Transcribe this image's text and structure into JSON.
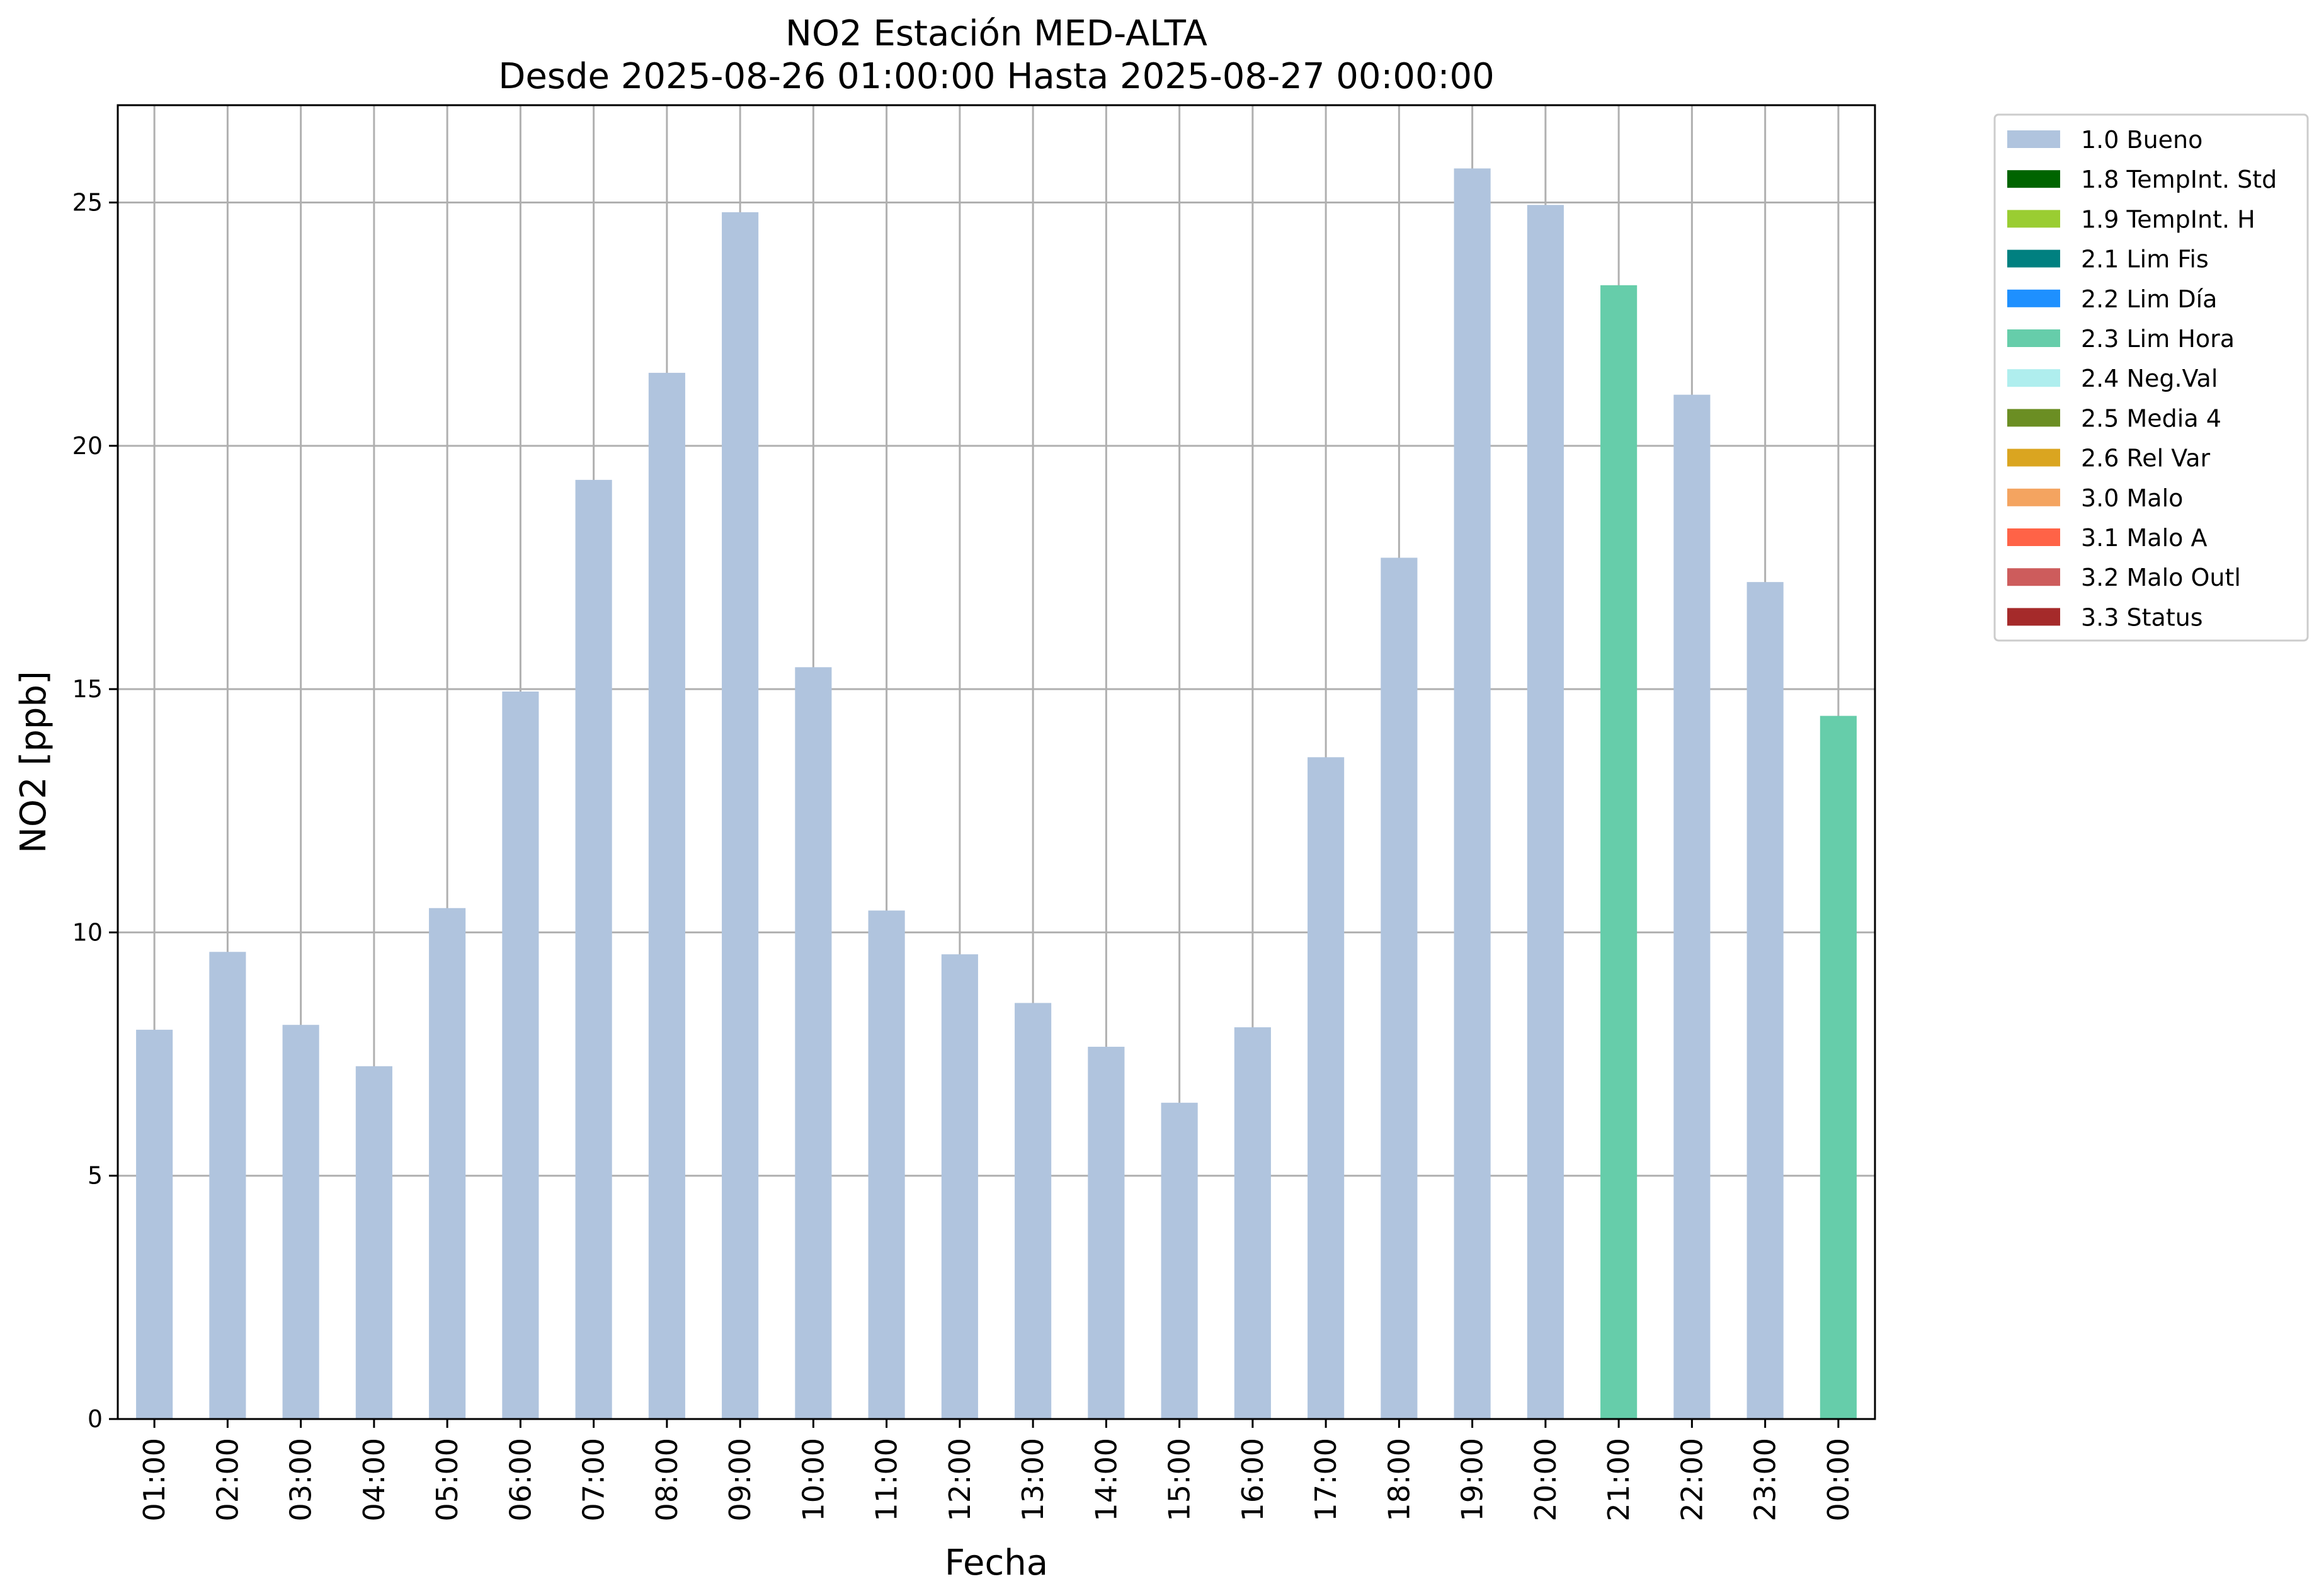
{
  "chart_data": {
    "type": "bar",
    "title": "NO2 Estación MED-ALTA",
    "subtitle": "Desde 2025-08-26 01:00:00 Hasta 2025-08-27 00:00:00",
    "xlabel": "Fecha",
    "ylabel": "NO2 [ppb]",
    "ylim": [
      0,
      27
    ],
    "yticks": [
      0,
      5,
      10,
      15,
      20,
      25
    ],
    "grid": true,
    "legend_position": "outside-top-right",
    "categories": [
      "01:00",
      "02:00",
      "03:00",
      "04:00",
      "05:00",
      "06:00",
      "07:00",
      "08:00",
      "09:00",
      "10:00",
      "11:00",
      "12:00",
      "13:00",
      "14:00",
      "15:00",
      "16:00",
      "17:00",
      "18:00",
      "19:00",
      "20:00",
      "21:00",
      "22:00",
      "23:00",
      "00:00"
    ],
    "values": [
      8.0,
      9.6,
      8.1,
      7.25,
      10.5,
      14.95,
      19.3,
      21.5,
      24.8,
      15.45,
      10.45,
      9.55,
      8.55,
      7.65,
      6.5,
      8.05,
      13.6,
      17.7,
      25.7,
      24.95,
      23.3,
      21.05,
      17.2,
      14.45
    ],
    "flags": [
      "1.0 Bueno",
      "1.0 Bueno",
      "1.0 Bueno",
      "1.0 Bueno",
      "1.0 Bueno",
      "1.0 Bueno",
      "1.0 Bueno",
      "1.0 Bueno",
      "1.0 Bueno",
      "1.0 Bueno",
      "1.0 Bueno",
      "1.0 Bueno",
      "1.0 Bueno",
      "1.0 Bueno",
      "1.0 Bueno",
      "1.0 Bueno",
      "1.0 Bueno",
      "1.0 Bueno",
      "1.0 Bueno",
      "1.0 Bueno",
      "2.3 Lim Hora",
      "1.0 Bueno",
      "1.0 Bueno",
      "2.3 Lim Hora"
    ],
    "legend": [
      {
        "label": "1.0 Bueno",
        "color": "#b0c4de"
      },
      {
        "label": "1.8 TempInt. Std",
        "color": "#006400"
      },
      {
        "label": "1.9 TempInt. H",
        "color": "#9acd32"
      },
      {
        "label": "2.1 Lim Fis",
        "color": "#008080"
      },
      {
        "label": "2.2 Lim Día",
        "color": "#1e90ff"
      },
      {
        "label": "2.3 Lim Hora",
        "color": "#66cdaa"
      },
      {
        "label": "2.4 Neg.Val",
        "color": "#afeeee"
      },
      {
        "label": "2.5 Media 4",
        "color": "#6b8e23"
      },
      {
        "label": "2.6 Rel Var",
        "color": "#daa520"
      },
      {
        "label": "3.0 Malo",
        "color": "#f4a460"
      },
      {
        "label": "3.1 Malo A",
        "color": "#ff6347"
      },
      {
        "label": "3.2 Malo Outl",
        "color": "#cd5c5c"
      },
      {
        "label": "3.3 Status",
        "color": "#a52a2a"
      }
    ]
  }
}
